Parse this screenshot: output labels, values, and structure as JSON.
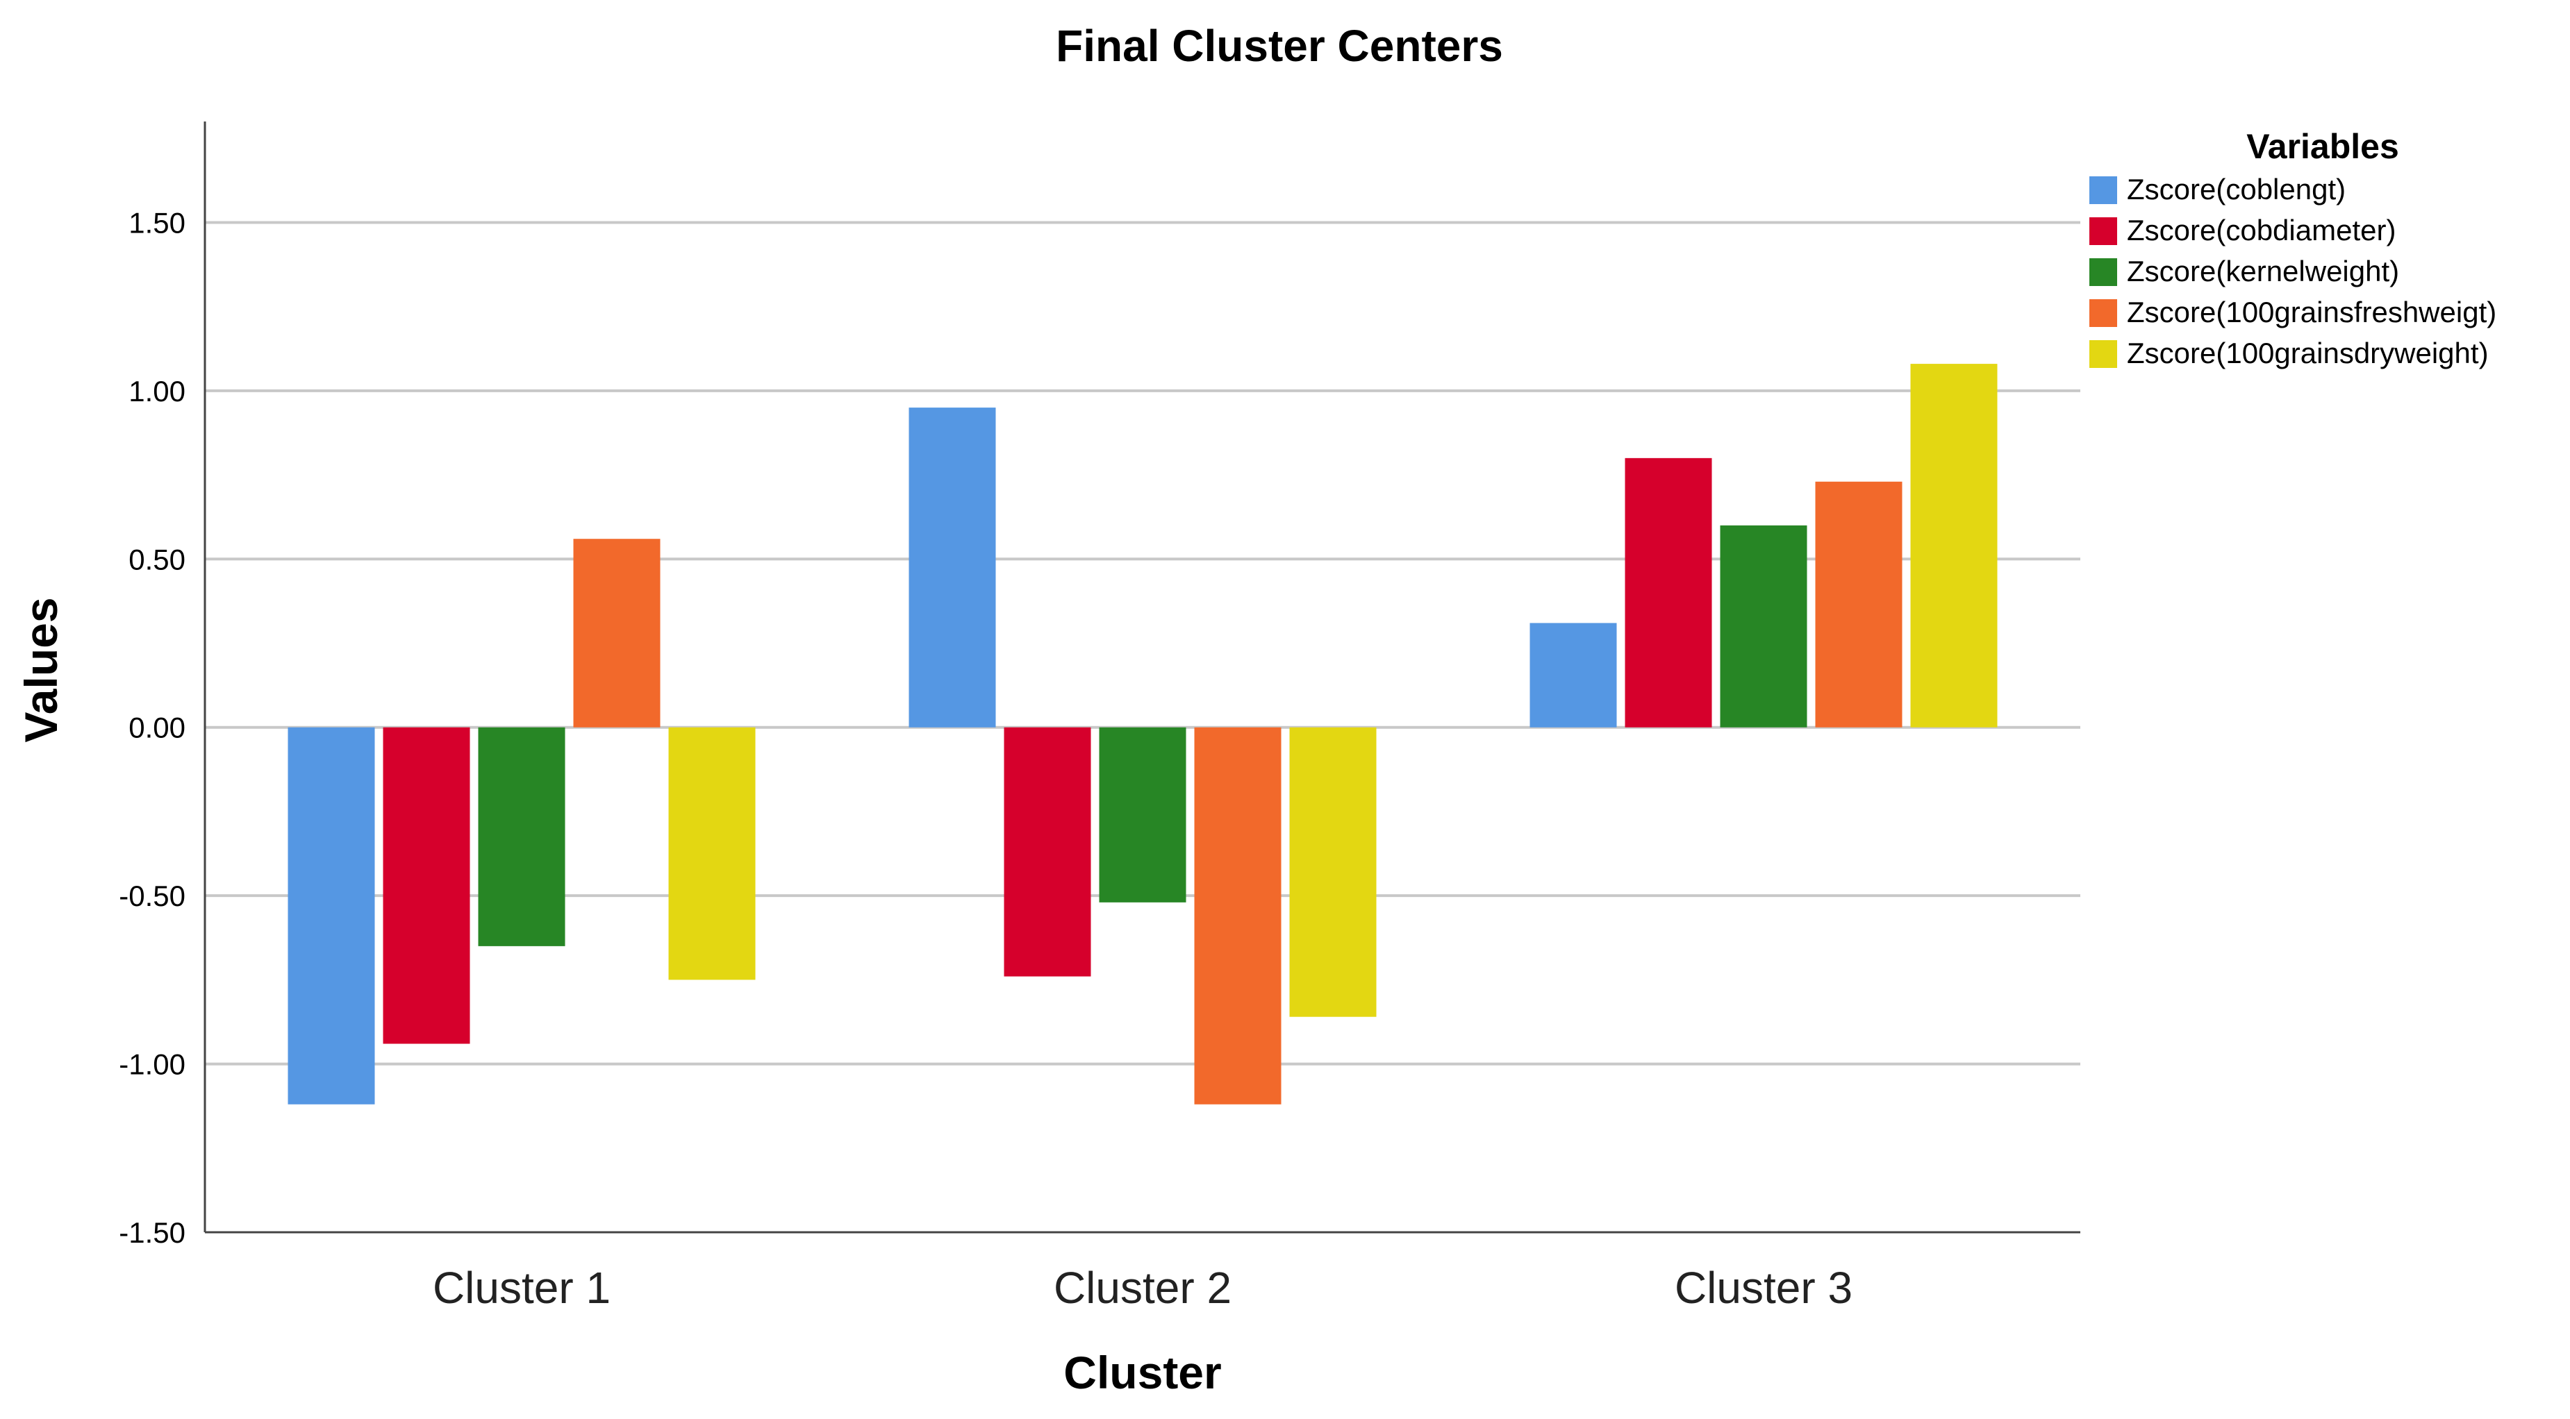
{
  "chart_data": {
    "type": "bar",
    "title": "Final Cluster Centers",
    "xlabel": "Cluster",
    "ylabel": "Values",
    "ylim": [
      -1.5,
      1.8
    ],
    "yticks": [
      1.5,
      1.0,
      0.5,
      0.0,
      -0.5,
      -1.0,
      -1.5
    ],
    "ytick_labels": [
      "1.50",
      "1.00",
      "0.50",
      "0.00",
      "-0.50",
      "-1.00",
      "-1.50"
    ],
    "grid": "horizontal",
    "legend_title": "Variables",
    "legend_position": "top-right",
    "categories": [
      "Cluster 1",
      "Cluster 2",
      "Cluster 3"
    ],
    "series": [
      {
        "name": "Zscore(coblengt)",
        "color": "#5597E3",
        "values": [
          -1.12,
          0.95,
          0.31
        ]
      },
      {
        "name": "Zscore(cobdiameter)",
        "color": "#D6002C",
        "values": [
          -0.94,
          -0.74,
          0.8
        ]
      },
      {
        "name": "Zscore(kernelweight)",
        "color": "#278625",
        "values": [
          -0.65,
          -0.52,
          0.6
        ]
      },
      {
        "name": "Zscore(100grainsfreshweigt)",
        "color": "#F2692B",
        "values": [
          0.56,
          -1.12,
          0.73
        ]
      },
      {
        "name": "Zscore(100grainsdryweight)",
        "color": "#E3D712",
        "values": [
          -0.75,
          -0.86,
          1.08
        ]
      }
    ]
  }
}
